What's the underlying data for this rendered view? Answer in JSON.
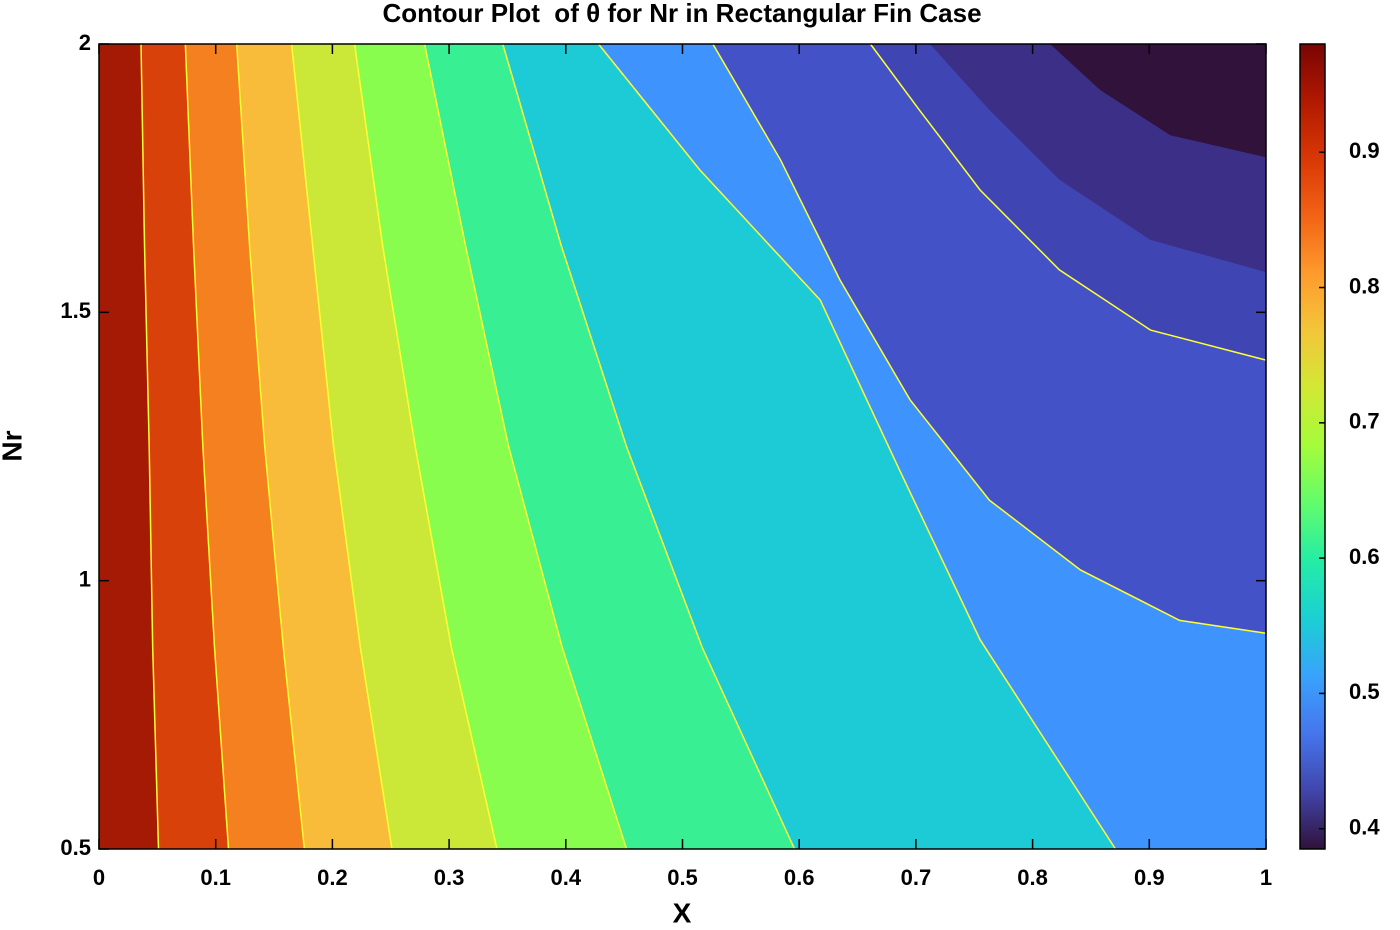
{
  "chart_data": {
    "type": "contour",
    "title": "Contour Plot  of θ for Nr in Rectangular Fin Case",
    "xlabel": "X",
    "ylabel": "Nr",
    "xlim": [
      0,
      1
    ],
    "xticks": [
      0,
      0.1,
      0.2,
      0.3,
      0.4,
      0.5,
      0.6,
      0.7,
      0.8,
      0.9,
      1
    ],
    "ylim": [
      0.5,
      2
    ],
    "yticks": [
      0.5,
      1,
      1.5,
      2
    ],
    "line_color": "#ffff33",
    "region_colors": [
      "#a51a04",
      "#d9410a",
      "#f5801f",
      "#f9bb3a",
      "#cbe838",
      "#89fd4d",
      "#38f093",
      "#1ccbd5",
      "#3f93fc",
      "#4452c8",
      "#3f46b4",
      "#3b2f88",
      "#30123b"
    ],
    "contours": [
      {
        "level": 0.95,
        "lined": true,
        "x": [
          0.036,
          0.039,
          0.043,
          0.046,
          0.051
        ],
        "y": [
          2,
          1.625,
          1.25,
          0.875,
          0.5
        ]
      },
      {
        "level": 0.9,
        "lined": true,
        "x": [
          0.074,
          0.081,
          0.089,
          0.099,
          0.111
        ],
        "y": [
          2,
          1.625,
          1.25,
          0.875,
          0.5
        ]
      },
      {
        "level": 0.85,
        "lined": true,
        "x": [
          0.118,
          0.129,
          0.142,
          0.158,
          0.176
        ],
        "y": [
          2,
          1.625,
          1.25,
          0.875,
          0.5
        ]
      },
      {
        "level": 0.8,
        "lined": true,
        "x": [
          0.165,
          0.183,
          0.201,
          0.224,
          0.251
        ],
        "y": [
          2,
          1.625,
          1.25,
          0.875,
          0.5
        ]
      },
      {
        "level": 0.75,
        "lined": true,
        "x": [
          0.219,
          0.243,
          0.271,
          0.302,
          0.341
        ],
        "y": [
          2,
          1.625,
          1.25,
          0.875,
          0.5
        ]
      },
      {
        "level": 0.7,
        "lined": true,
        "x": [
          0.279,
          0.314,
          0.351,
          0.397,
          0.452
        ],
        "y": [
          2,
          1.625,
          1.25,
          0.875,
          0.5
        ]
      },
      {
        "level": 0.65,
        "lined": true,
        "x": [
          0.346,
          0.396,
          0.452,
          0.517,
          0.596
        ],
        "y": [
          2,
          1.625,
          1.25,
          0.875,
          0.5
        ]
      },
      {
        "level": 0.6,
        "lined": true,
        "x": [
          0.428,
          0.515,
          0.618,
          0.686,
          0.755,
          0.871
        ],
        "y": [
          2,
          1.765,
          1.523,
          1.206,
          0.89,
          0.5
        ]
      },
      {
        "level": 0.55,
        "lined": true,
        "x": [
          0.526,
          0.584,
          0.635,
          0.695,
          0.763,
          0.841,
          0.926,
          1
        ],
        "y": [
          2,
          1.784,
          1.56,
          1.337,
          1.15,
          1.02,
          0.926,
          0.902
        ]
      },
      {
        "level": 0.5,
        "lined": true,
        "x": [
          0.661,
          0.703,
          0.755,
          0.823,
          0.901,
          1
        ],
        "y": [
          2,
          1.877,
          1.728,
          1.579,
          1.467,
          1.411
        ]
      },
      {
        "level": 0.45,
        "lined": false,
        "x": [
          0.712,
          0.763,
          0.823,
          0.901,
          1
        ],
        "y": [
          2,
          1.877,
          1.747,
          1.635,
          1.575
        ]
      },
      {
        "level": 0.4,
        "lined": false,
        "x": [
          0.815,
          0.858,
          0.918,
          1
        ],
        "y": [
          2,
          1.914,
          1.83,
          1.789
        ]
      }
    ],
    "colorbar": {
      "clim": [
        0.385,
        0.98
      ],
      "ticks": [
        0.4,
        0.5,
        0.6,
        0.7,
        0.8,
        0.9
      ],
      "colormap": [
        "#30123b",
        "#4145ab",
        "#4675ed",
        "#39a2fc",
        "#1bcfd4",
        "#24eca6",
        "#61fc6c",
        "#a4fc3b",
        "#d1e834",
        "#f3c63a",
        "#fe9b2d",
        "#f36315",
        "#d93806",
        "#b11901",
        "#7a0403"
      ]
    }
  }
}
